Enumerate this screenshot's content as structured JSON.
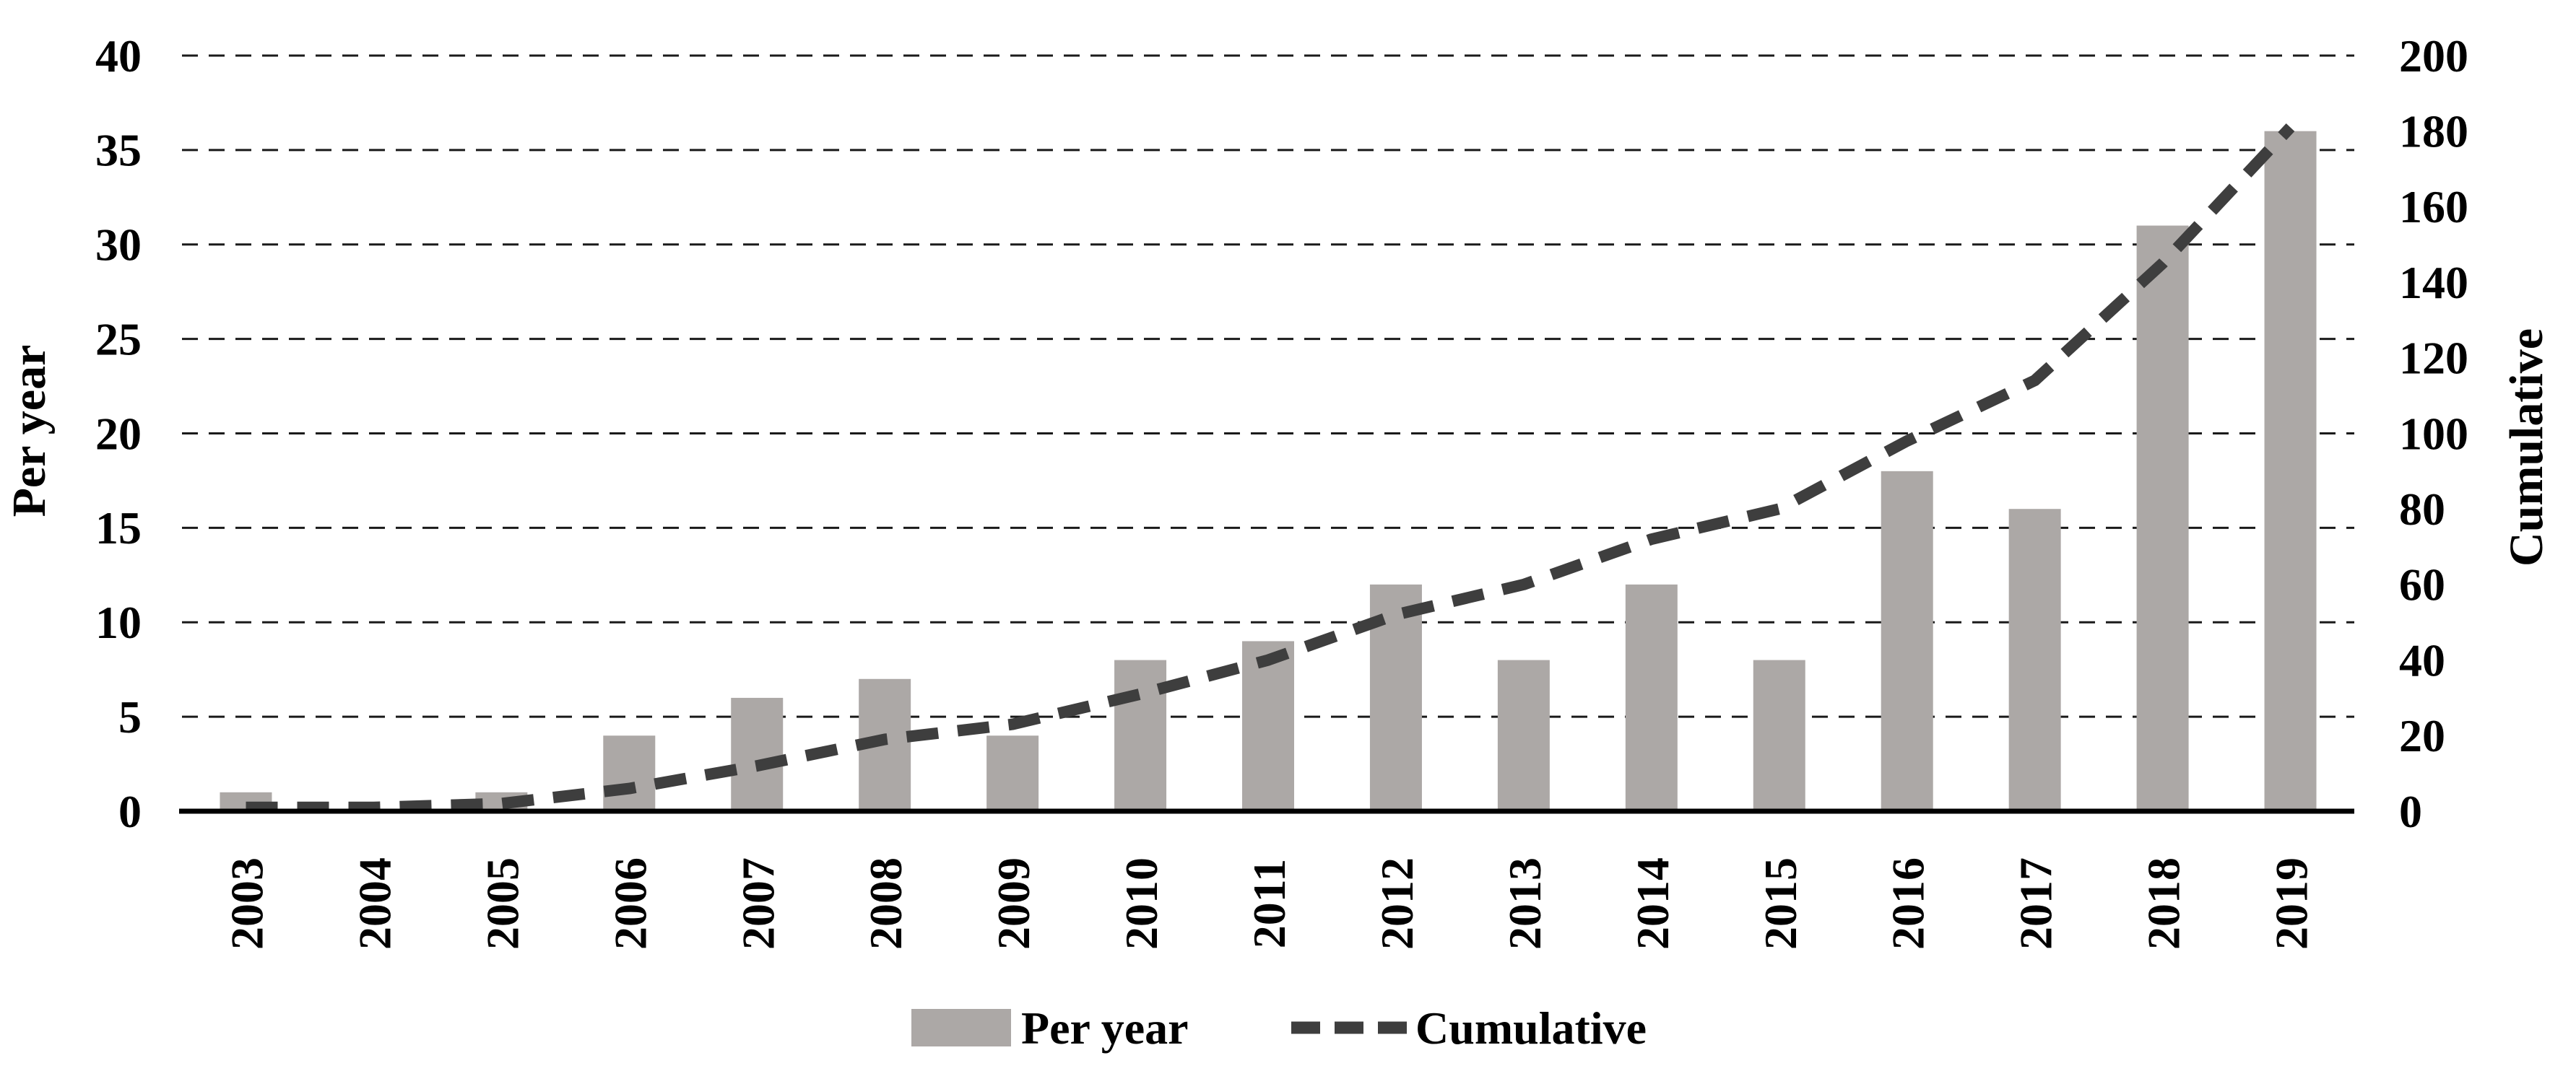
{
  "chart_data": {
    "type": "combo",
    "categories": [
      "2003",
      "2004",
      "2005",
      "2006",
      "2007",
      "2008",
      "2009",
      "2010",
      "2011",
      "2012",
      "2013",
      "2014",
      "2015",
      "2016",
      "2017",
      "2018",
      "2019"
    ],
    "series": [
      {
        "name": "Per year",
        "type": "bar",
        "axis": "left",
        "color": "#aca8a6",
        "values": [
          1,
          0,
          1,
          4,
          6,
          7,
          4,
          8,
          9,
          12,
          8,
          12,
          8,
          18,
          16,
          31,
          36
        ]
      },
      {
        "name": "Cumulative",
        "type": "line",
        "axis": "right",
        "color": "#3e3e3e",
        "style": "dashed",
        "values": [
          1,
          1,
          2,
          6,
          12,
          19,
          23,
          31,
          40,
          52,
          60,
          72,
          80,
          98,
          114,
          145,
          181
        ]
      }
    ],
    "left_axis": {
      "label": "Per year",
      "min": 0,
      "max": 40,
      "tick_step": 5,
      "tick_labels": [
        "0",
        "5",
        "10",
        "15",
        "20",
        "25",
        "30",
        "35",
        "40"
      ]
    },
    "right_axis": {
      "label": "Cumulative",
      "min": 0,
      "max": 200,
      "tick_step": 20,
      "tick_labels": [
        "0",
        "20",
        "40",
        "60",
        "80",
        "100",
        "120",
        "140",
        "160",
        "180",
        "200"
      ]
    },
    "legend": {
      "position": "bottom",
      "entries": [
        "Per year",
        "Cumulative"
      ]
    },
    "grid": "horizontal-dashed",
    "gridline_color": "#1a1a1a",
    "axis_line_color": "#000000",
    "background": "#ffffff"
  }
}
